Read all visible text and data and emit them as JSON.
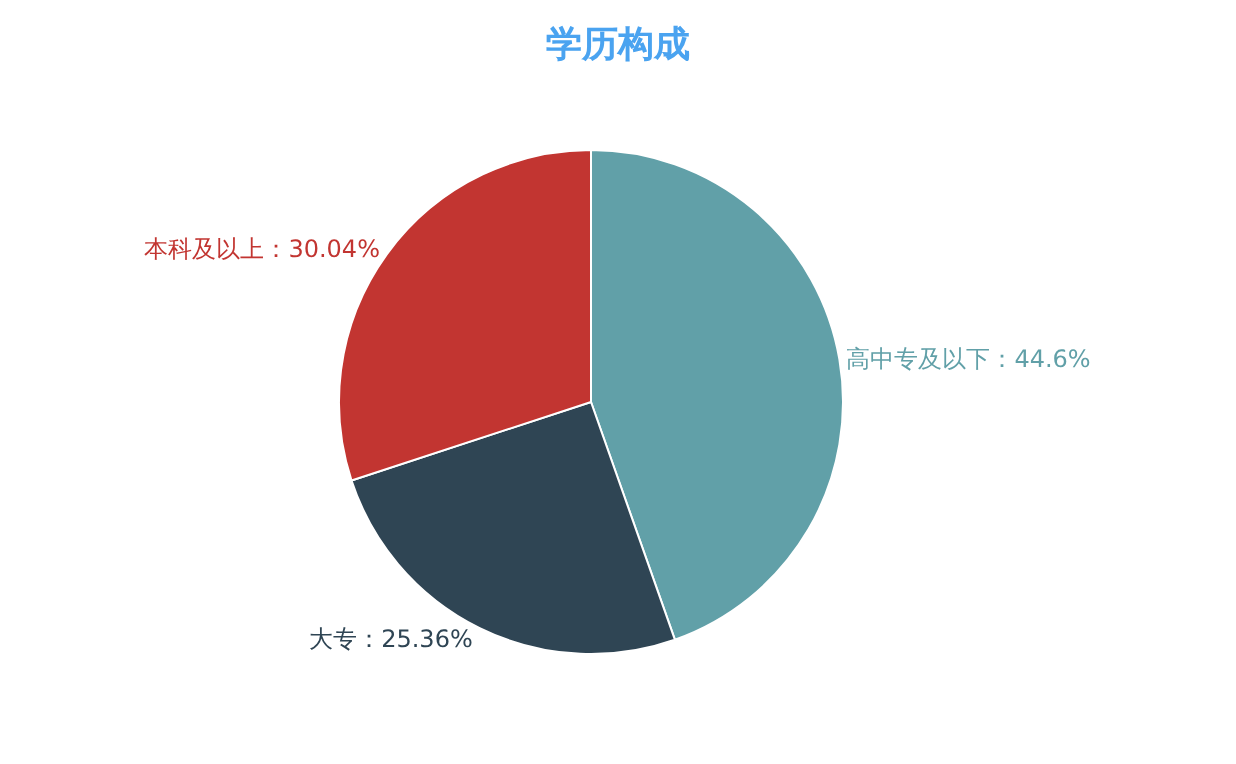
{
  "chart_data": {
    "type": "pie",
    "title": "学历构成",
    "categories": [
      "高中专及以下",
      "大专",
      "本科及以上"
    ],
    "values": [
      44.6,
      25.36,
      30.04
    ],
    "colors": [
      "#61a0a8",
      "#2f4554",
      "#c23531"
    ],
    "value_labels": [
      "44.6%",
      "25.36%",
      "30.04%"
    ],
    "legend": false
  }
}
